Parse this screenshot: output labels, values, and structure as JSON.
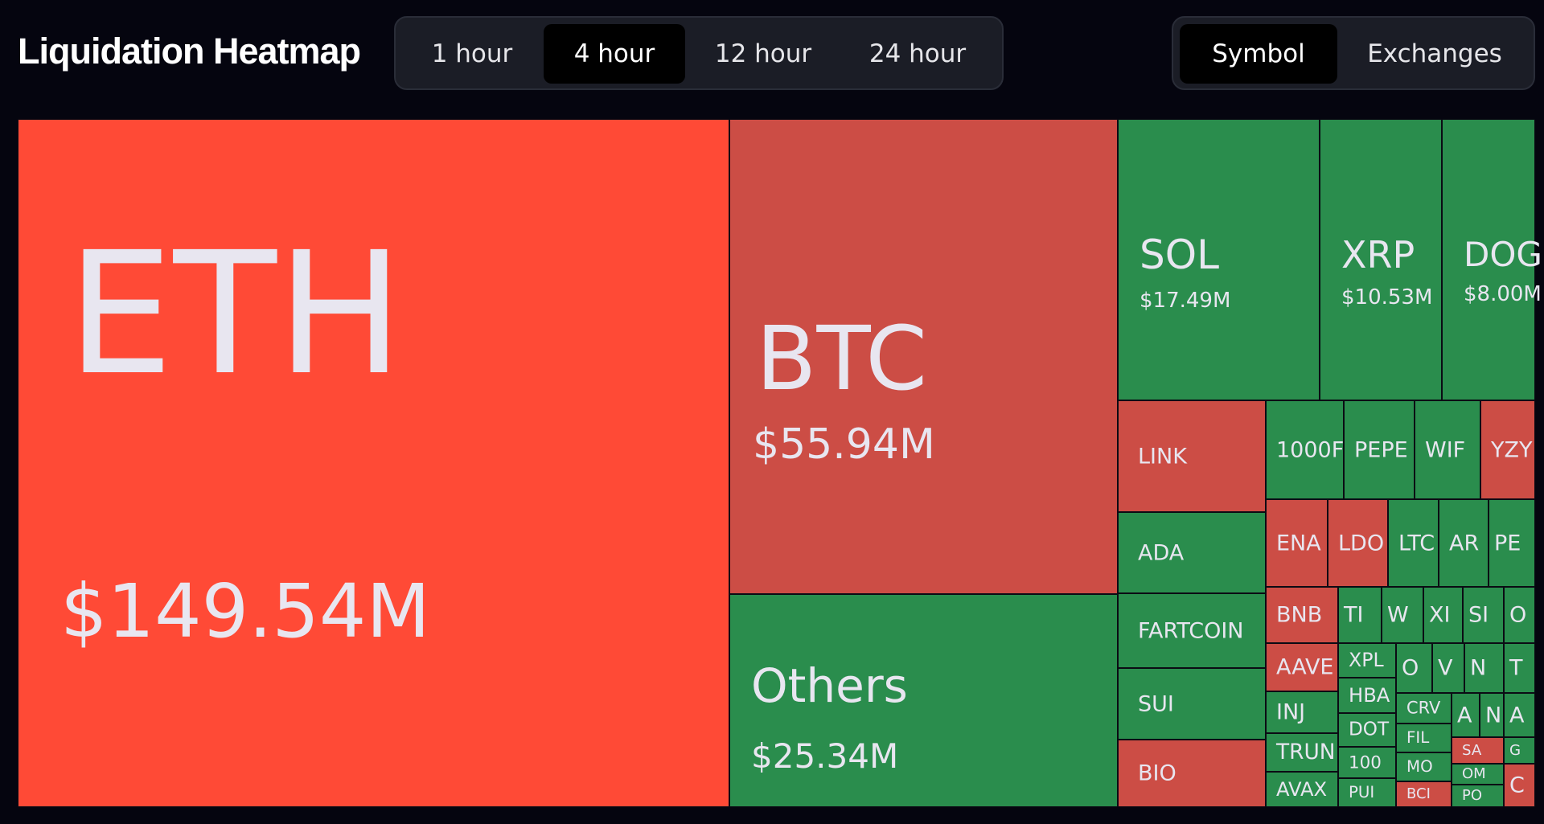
{
  "header": {
    "title": "Liquidation Heatmap",
    "timeframes": [
      "1 hour",
      "4 hour",
      "12 hour",
      "24 hour"
    ],
    "active_timeframe": "4 hour",
    "views": [
      "Symbol",
      "Exchanges"
    ],
    "active_view": "Symbol"
  },
  "colors": {
    "red_bright": "#ff4a36",
    "red": "#cc4d45",
    "green": "#2a8d4d",
    "background": "#05050f"
  },
  "tiles": [
    {
      "symbol": "ETH",
      "value": "$149.54M",
      "color": "red_bright"
    },
    {
      "symbol": "BTC",
      "value": "$55.94M",
      "color": "red"
    },
    {
      "symbol": "Others",
      "value": "$25.34M",
      "color": "green"
    },
    {
      "symbol": "SOL",
      "value": "$17.49M",
      "color": "green"
    },
    {
      "symbol": "XRP",
      "value": "$10.53M",
      "color": "green"
    },
    {
      "symbol": "DOG",
      "value": "$8.00M",
      "color": "green"
    },
    {
      "symbol": "LINK",
      "color": "red"
    },
    {
      "symbol": "ADA",
      "color": "green"
    },
    {
      "symbol": "FARTCOIN",
      "color": "green"
    },
    {
      "symbol": "SUI",
      "color": "green"
    },
    {
      "symbol": "BIO",
      "color": "red"
    },
    {
      "symbol": "1000F",
      "color": "green"
    },
    {
      "symbol": "PEPE",
      "color": "green"
    },
    {
      "symbol": "WIF",
      "color": "green"
    },
    {
      "symbol": "YZY",
      "color": "red"
    },
    {
      "symbol": "ENA",
      "color": "red"
    },
    {
      "symbol": "LDO",
      "color": "red"
    },
    {
      "symbol": "LTC",
      "color": "green"
    },
    {
      "symbol": "AR",
      "color": "green"
    },
    {
      "symbol": "PE",
      "color": "green"
    },
    {
      "symbol": "BNB",
      "color": "red"
    },
    {
      "symbol": "AAVE",
      "color": "red"
    },
    {
      "symbol": "INJ",
      "color": "green"
    },
    {
      "symbol": "TRUN",
      "color": "green"
    },
    {
      "symbol": "AVAX",
      "color": "green"
    },
    {
      "symbol": "TI",
      "color": "green"
    },
    {
      "symbol": "W",
      "color": "green"
    },
    {
      "symbol": "XI",
      "color": "green"
    },
    {
      "symbol": "SI",
      "color": "green"
    },
    {
      "symbol": "O",
      "color": "green"
    },
    {
      "symbol": "XPL",
      "color": "green"
    },
    {
      "symbol": "HBA",
      "color": "green"
    },
    {
      "symbol": "DOT",
      "color": "green"
    },
    {
      "symbol": "100",
      "color": "green"
    },
    {
      "symbol": "PUI",
      "color": "green"
    },
    {
      "symbol": "O",
      "color": "green"
    },
    {
      "symbol": "V",
      "color": "green"
    },
    {
      "symbol": "N",
      "color": "green"
    },
    {
      "symbol": "T",
      "color": "green"
    },
    {
      "symbol": "CRV",
      "color": "green"
    },
    {
      "symbol": "FIL",
      "color": "green"
    },
    {
      "symbol": "MO",
      "color": "green"
    },
    {
      "symbol": "BCI",
      "color": "red"
    },
    {
      "symbol": "A",
      "color": "green"
    },
    {
      "symbol": "N",
      "color": "green"
    },
    {
      "symbol": "A",
      "color": "green"
    },
    {
      "symbol": "SA",
      "color": "red"
    },
    {
      "symbol": "G",
      "color": "green"
    },
    {
      "symbol": "OM",
      "color": "green"
    },
    {
      "symbol": "PO",
      "color": "green"
    },
    {
      "symbol": "C",
      "color": "red"
    }
  ]
}
